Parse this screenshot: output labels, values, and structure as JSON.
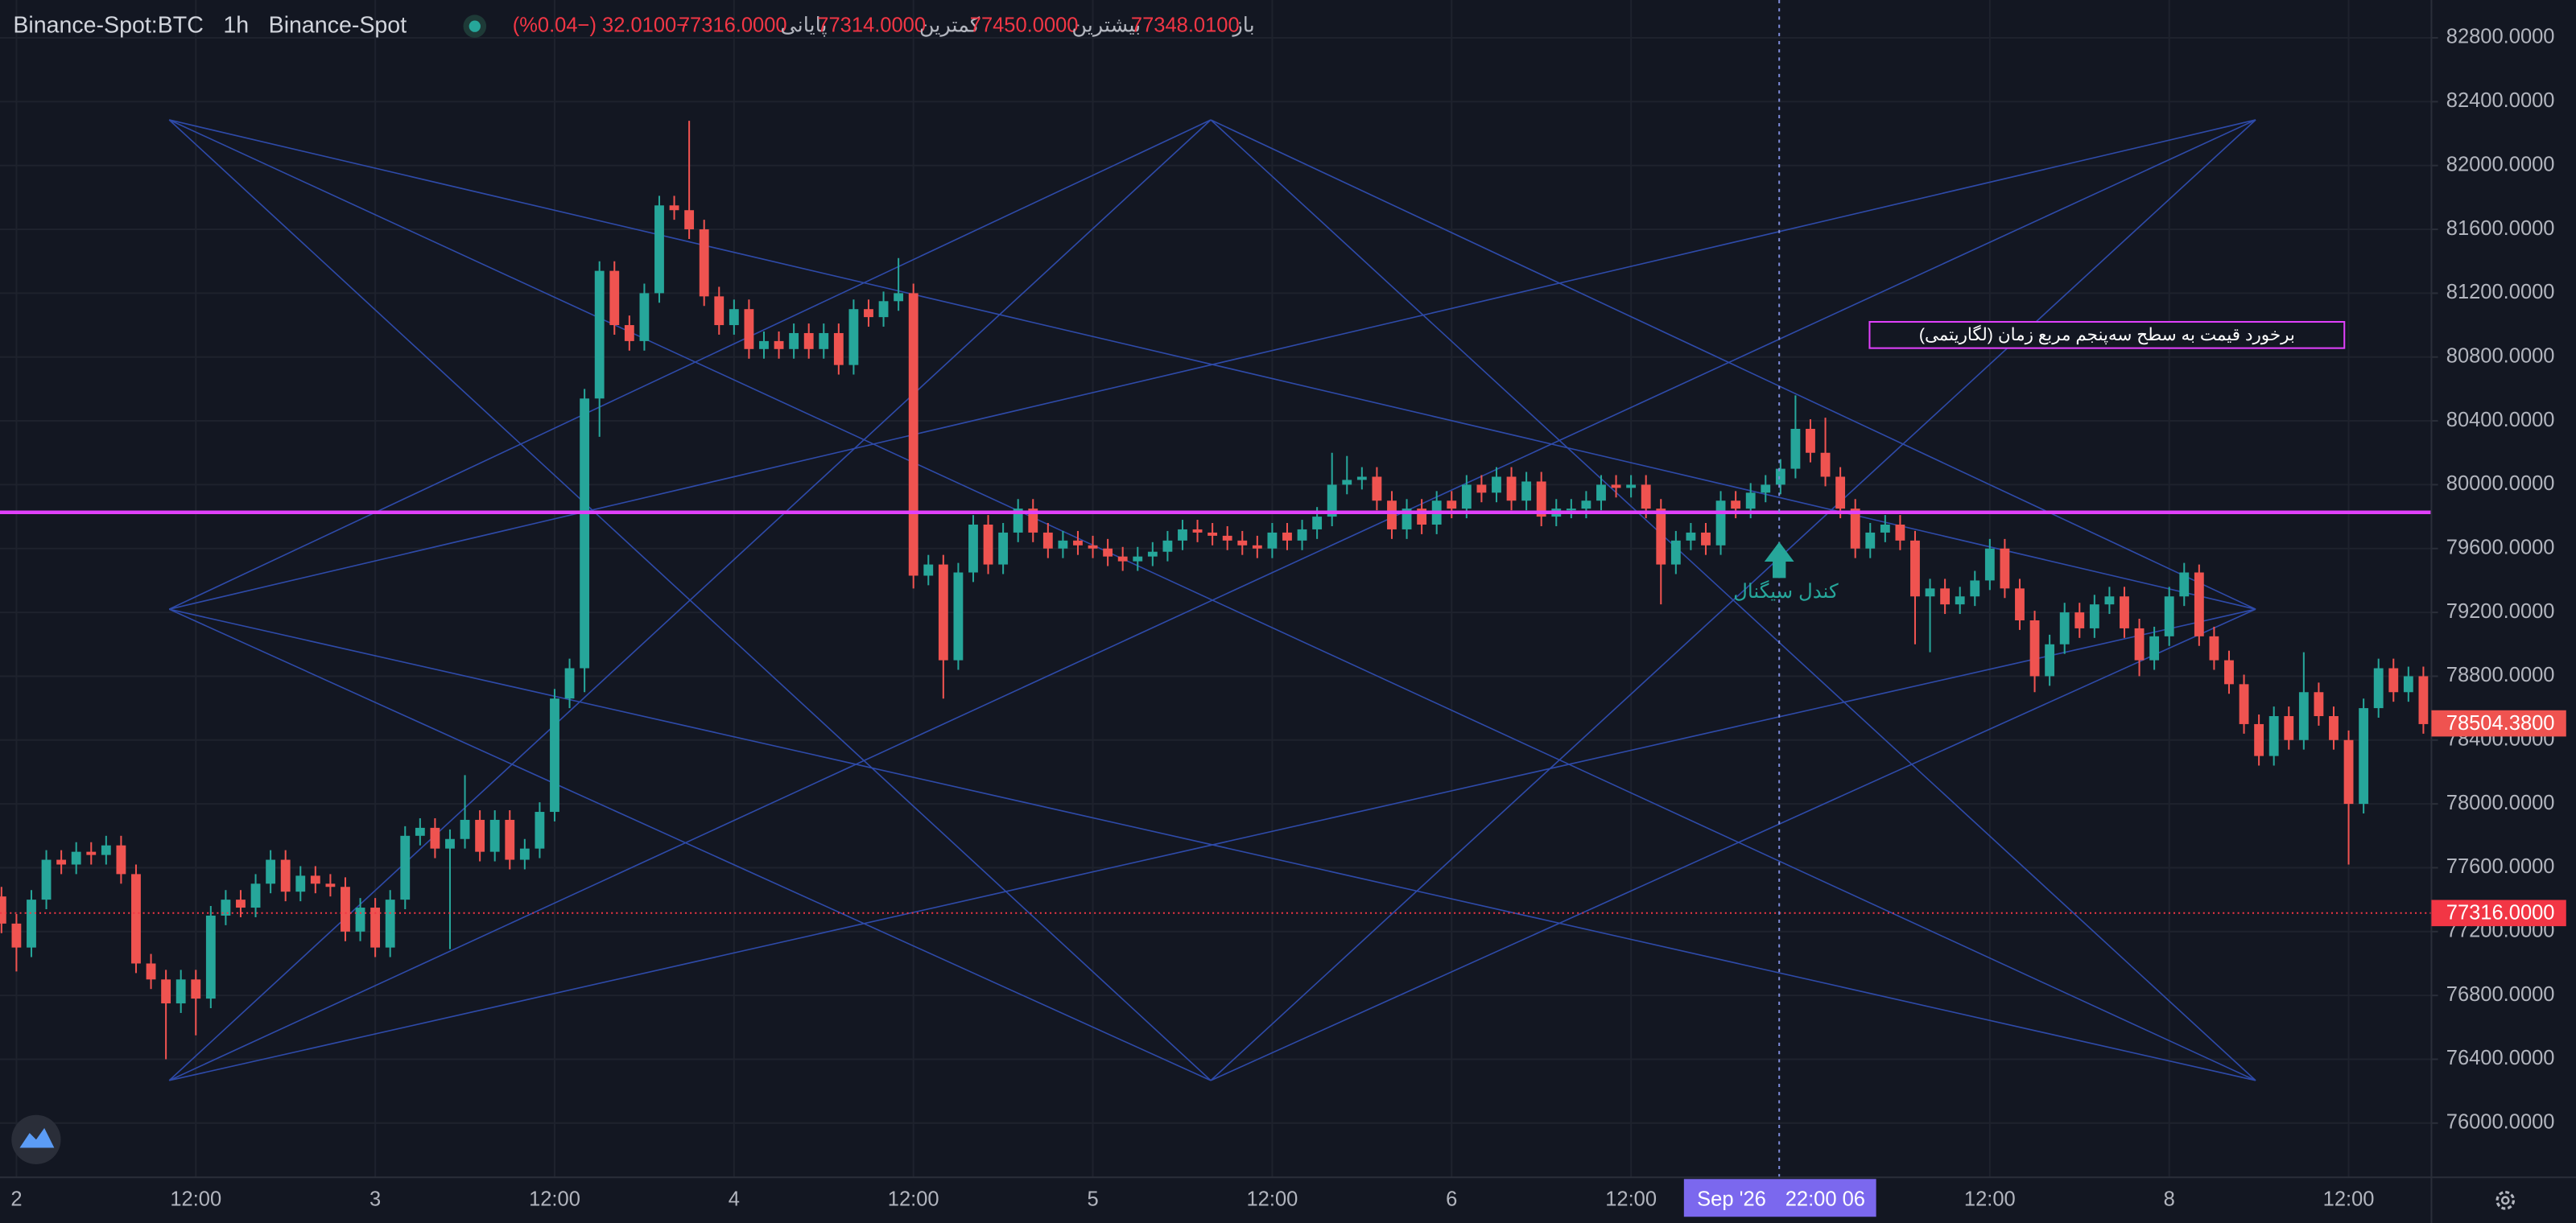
{
  "header": {
    "symbol": "Binance-Spot:BTC",
    "interval": "1h",
    "exchange": "Binance-Spot",
    "ohlc": [
      {
        "label": "باز",
        "value": "77348.0100"
      },
      {
        "label": "بیشترین",
        "value": "77450.0000"
      },
      {
        "label": "کمترین",
        "value": "77314.0000"
      },
      {
        "label": "پایانی",
        "value": "77316.0000"
      }
    ],
    "change": "−32.0100 (−0.04%)"
  },
  "chart_data": {
    "type": "candlestick",
    "categories": [
      null,
      "2",
      null,
      null,
      null,
      null,
      null,
      null,
      null,
      null,
      null,
      null,
      null,
      "12:00",
      null,
      null,
      null,
      null,
      null,
      null,
      null,
      null,
      null,
      null,
      null,
      "3",
      null,
      null,
      null,
      null,
      null,
      null,
      null,
      null,
      null,
      null,
      null,
      "12:00",
      null,
      null,
      null,
      null,
      null,
      null,
      null,
      null,
      null,
      null,
      null,
      "4",
      null,
      null,
      null,
      null,
      null,
      null,
      null,
      null,
      null,
      null,
      null,
      "12:00",
      null,
      null,
      null,
      null,
      null,
      null,
      null,
      null,
      null,
      null,
      null,
      "5",
      null,
      null,
      null,
      null,
      null,
      null,
      null,
      null,
      null,
      null,
      null,
      "12:00",
      null,
      null,
      null,
      null,
      null,
      null,
      null,
      null,
      null,
      null,
      null,
      "6",
      null,
      null,
      null,
      null,
      null,
      null,
      null,
      null,
      null,
      null,
      null,
      "12:00",
      null,
      null,
      null,
      null,
      null,
      null,
      null,
      null,
      null,
      null,
      null,
      null,
      null,
      null,
      null,
      null,
      null,
      null,
      null,
      null,
      null,
      null,
      null,
      "12:00",
      null,
      null,
      null,
      null,
      null,
      null,
      null,
      null,
      null,
      null,
      null,
      "8",
      null,
      null,
      null,
      null,
      null,
      null,
      null,
      null,
      null,
      null,
      null,
      "12:00",
      null,
      null,
      null,
      null,
      null
    ],
    "open": [
      77420,
      77250,
      77100,
      77400,
      77650,
      77620,
      77700,
      77680,
      77740,
      77560,
      77000,
      76900,
      76750,
      76900,
      76780,
      77300,
      77400,
      77350,
      77500,
      77650,
      77450,
      77550,
      77500,
      77480,
      77200,
      77350,
      77100,
      77400,
      77800,
      77850,
      77720,
      77780,
      77900,
      77700,
      77900,
      77650,
      77720,
      77950,
      78660,
      78850,
      80540,
      81340,
      81000,
      80900,
      81200,
      81750,
      81720,
      81600,
      81180,
      81000,
      81100,
      80850,
      80900,
      80850,
      80950,
      80850,
      80950,
      80750,
      81100,
      81050,
      81150,
      81200,
      79430,
      79500,
      78900,
      79450,
      79750,
      79500,
      79700,
      79850,
      79700,
      79600,
      79650,
      79620,
      79600,
      79550,
      79520,
      79550,
      79580,
      79650,
      79720,
      79700,
      79680,
      79650,
      79620,
      79600,
      79700,
      79650,
      79720,
      79800,
      80000,
      80030,
      80050,
      79900,
      79720,
      79850,
      79750,
      79900,
      79850,
      80000,
      79950,
      80050,
      79900,
      80020,
      79800,
      79850,
      79850,
      79900,
      80000,
      79980,
      80000,
      79850,
      79500,
      79650,
      79700,
      79620,
      79900,
      79850,
      79950,
      80000,
      80100,
      80350,
      80200,
      80050,
      79850,
      79600,
      79700,
      79750,
      79650,
      79300,
      79350,
      79250,
      79300,
      79400,
      79600,
      79350,
      79150,
      78800,
      79000,
      79200,
      79100,
      79250,
      79300,
      79100,
      78900,
      79050,
      79300,
      79450,
      79050,
      78900,
      78750,
      78500,
      78300,
      78550,
      78400,
      78700,
      78550,
      78400,
      78000,
      78600,
      78850,
      78700,
      78800
    ],
    "high": [
      77480,
      77310,
      77460,
      77710,
      77710,
      77760,
      77760,
      77800,
      77800,
      77620,
      77060,
      76960,
      76960,
      76960,
      77360,
      77460,
      77460,
      77560,
      77710,
      77710,
      77610,
      77610,
      77560,
      77540,
      77410,
      77410,
      77460,
      77860,
      77910,
      77910,
      77840,
      78180,
      77960,
      77960,
      77960,
      77780,
      78010,
      78720,
      78910,
      80600,
      81400,
      81400,
      81060,
      81260,
      81810,
      81810,
      82280,
      81660,
      81240,
      81160,
      81160,
      80960,
      80960,
      81010,
      81010,
      81010,
      81010,
      81160,
      81160,
      81210,
      81420,
      81260,
      79560,
      79560,
      79510,
      79810,
      79810,
      79760,
      79910,
      79910,
      79760,
      79710,
      79710,
      79680,
      79660,
      79610,
      79610,
      79640,
      79710,
      79780,
      79780,
      79760,
      79740,
      79710,
      79680,
      79760,
      79760,
      79780,
      79860,
      80200,
      80180,
      80110,
      80110,
      79960,
      79910,
      79910,
      79960,
      79960,
      80060,
      80060,
      80110,
      80110,
      80080,
      80080,
      79910,
      79910,
      79960,
      80060,
      80060,
      80060,
      80060,
      79910,
      79710,
      79760,
      79760,
      79960,
      79960,
      80010,
      80060,
      80160,
      80560,
      80410,
      80420,
      80110,
      79910,
      79760,
      79810,
      79810,
      79710,
      79410,
      79410,
      79360,
      79460,
      79660,
      79660,
      79410,
      79210,
      79060,
      79260,
      79260,
      79310,
      79360,
      79360,
      79160,
      79110,
      79360,
      79510,
      79500,
      79110,
      78960,
      78810,
      78560,
      78610,
      78610,
      78950,
      78760,
      78610,
      78460,
      78660,
      78910,
      78910,
      78860,
      78860
    ],
    "low": [
      77190,
      76950,
      77040,
      77340,
      77560,
      77560,
      77620,
      77620,
      77500,
      76940,
      76840,
      76400,
      76690,
      76550,
      76720,
      77240,
      77290,
      77290,
      77440,
      77390,
      77390,
      77440,
      77420,
      77140,
      77140,
      77040,
      77040,
      77340,
      77740,
      77660,
      77090,
      77720,
      77640,
      77640,
      77590,
      77590,
      77660,
      77890,
      78600,
      78700,
      80300,
      80940,
      80840,
      80840,
      81140,
      81660,
      81540,
      81120,
      80940,
      80940,
      80790,
      80790,
      80790,
      80790,
      80790,
      80790,
      80690,
      80690,
      80990,
      80990,
      81090,
      79350,
      79370,
      78660,
      78840,
      79390,
      79440,
      79440,
      79640,
      79640,
      79540,
      79540,
      79560,
      79540,
      79490,
      79460,
      79460,
      79490,
      79520,
      79590,
      79640,
      79620,
      79590,
      79560,
      79540,
      79540,
      79590,
      79590,
      79660,
      79740,
      79940,
      79970,
      79840,
      79660,
      79660,
      79690,
      79690,
      79790,
      79790,
      79890,
      79890,
      79840,
      79840,
      79740,
      79740,
      79790,
      79790,
      79840,
      79920,
      79920,
      79790,
      79250,
      79440,
      79590,
      79560,
      79560,
      79790,
      79790,
      79890,
      79940,
      80040,
      80140,
      79990,
      79790,
      79540,
      79540,
      79640,
      79590,
      79000,
      78950,
      79190,
      79190,
      79240,
      79340,
      79290,
      79090,
      78700,
      78740,
      78940,
      79040,
      79040,
      79190,
      79040,
      78800,
      78840,
      78990,
      79240,
      78990,
      78840,
      78690,
      78440,
      78240,
      78240,
      78340,
      78340,
      78490,
      78340,
      77620,
      77940,
      78540,
      78640,
      78640,
      78440
    ],
    "close": [
      77250,
      77100,
      77400,
      77650,
      77620,
      77700,
      77680,
      77740,
      77560,
      77000,
      76900,
      76750,
      76900,
      76780,
      77300,
      77400,
      77350,
      77500,
      77650,
      77450,
      77550,
      77500,
      77480,
      77200,
      77350,
      77100,
      77400,
      77800,
      77850,
      77720,
      77780,
      77900,
      77700,
      77900,
      77650,
      77720,
      77950,
      78660,
      78850,
      80540,
      81340,
      81000,
      80900,
      81200,
      81750,
      81720,
      81600,
      81180,
      81000,
      81100,
      80850,
      80900,
      80850,
      80950,
      80850,
      80950,
      80750,
      81100,
      81050,
      81150,
      81200,
      79430,
      79500,
      78900,
      79450,
      79750,
      79500,
      79700,
      79850,
      79700,
      79600,
      79650,
      79620,
      79600,
      79550,
      79520,
      79550,
      79580,
      79650,
      79720,
      79700,
      79680,
      79650,
      79620,
      79600,
      79700,
      79650,
      79720,
      79800,
      80000,
      80030,
      80050,
      79900,
      79720,
      79850,
      79750,
      79900,
      79850,
      80000,
      79950,
      80050,
      79900,
      80020,
      79800,
      79850,
      79850,
      79900,
      80000,
      79980,
      80000,
      79850,
      79500,
      79650,
      79700,
      79620,
      79900,
      79850,
      79950,
      80000,
      80100,
      80350,
      80200,
      80050,
      79850,
      79600,
      79700,
      79750,
      79650,
      79300,
      79350,
      79250,
      79300,
      79400,
      79600,
      79350,
      79150,
      78800,
      79000,
      79200,
      79100,
      79250,
      79300,
      79100,
      78900,
      79050,
      79300,
      79450,
      79050,
      78900,
      78750,
      78500,
      78300,
      78550,
      78400,
      78700,
      78550,
      78400,
      78000,
      78600,
      78850,
      78700,
      78800,
      78500
    ],
    "up_color": "#26a69a",
    "down_color": "#ef5350",
    "ylim": [
      75660,
      83037
    ],
    "yticks": [
      {
        "value": 76000,
        "label": "76000.0000"
      },
      {
        "value": 76400,
        "label": "76400.0000"
      },
      {
        "value": 76800,
        "label": "76800.0000"
      },
      {
        "value": 77200,
        "label": "77200.0000"
      },
      {
        "value": 77600,
        "label": "77600.0000"
      },
      {
        "value": 78000,
        "label": "78000.0000"
      },
      {
        "value": 78400,
        "label": "78400.0000"
      },
      {
        "value": 78800,
        "label": "78800.0000"
      },
      {
        "value": 79200,
        "label": "79200.0000"
      },
      {
        "value": 79600,
        "label": "79600.0000"
      },
      {
        "value": 80000,
        "label": "80000.0000"
      },
      {
        "value": 80400,
        "label": "80400.0000"
      },
      {
        "value": 80800,
        "label": "80800.0000"
      },
      {
        "value": 81200,
        "label": "81200.0000"
      },
      {
        "value": 81600,
        "label": "81600.0000"
      },
      {
        "value": 82000,
        "label": "82000.0000"
      },
      {
        "value": 82400,
        "label": "82400.0000"
      },
      {
        "value": 82800,
        "label": "82800.0000"
      }
    ],
    "grid": true,
    "horizontal_line": {
      "value": 79827,
      "color": "#e040fb"
    },
    "price_tags": [
      {
        "value": 78504.38,
        "label": "78504.3800",
        "color": "#ef5350",
        "line": "none"
      },
      {
        "value": 77316,
        "label": "77316.0000",
        "color": "#f23645",
        "line": "dotted"
      }
    ],
    "annotations": {
      "box_text": "برخورد قیمت به سطح سه‌پنجم مربع زمان (لگاریتمی)",
      "signal_text": "کندل سیگنال"
    },
    "crosshair": {
      "date": "Sep '26",
      "time": "22:00 06"
    }
  }
}
